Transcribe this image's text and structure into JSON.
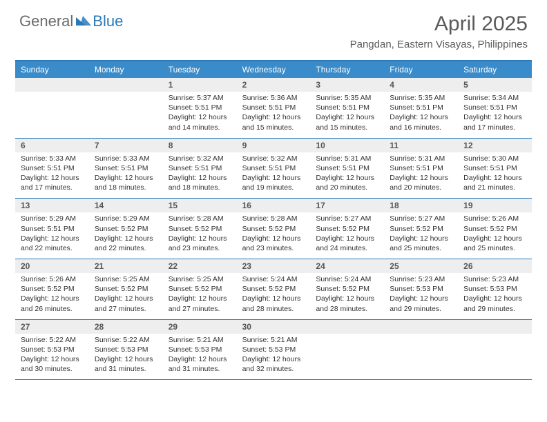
{
  "logo": {
    "general": "General",
    "blue": "Blue"
  },
  "title": "April 2025",
  "location": "Pangdan, Eastern Visayas, Philippines",
  "colors": {
    "header_bar": "#3a8bc9",
    "border": "#2a7ab8",
    "daynum_bg": "#eeeeee",
    "text": "#333333",
    "title_text": "#5a5a5a"
  },
  "weekday_headers": [
    "Sunday",
    "Monday",
    "Tuesday",
    "Wednesday",
    "Thursday",
    "Friday",
    "Saturday"
  ],
  "weeks": [
    [
      {
        "n": "",
        "sr": "",
        "ss": "",
        "dl1": "",
        "dl2": ""
      },
      {
        "n": "",
        "sr": "",
        "ss": "",
        "dl1": "",
        "dl2": ""
      },
      {
        "n": "1",
        "sr": "Sunrise: 5:37 AM",
        "ss": "Sunset: 5:51 PM",
        "dl1": "Daylight: 12 hours",
        "dl2": "and 14 minutes."
      },
      {
        "n": "2",
        "sr": "Sunrise: 5:36 AM",
        "ss": "Sunset: 5:51 PM",
        "dl1": "Daylight: 12 hours",
        "dl2": "and 15 minutes."
      },
      {
        "n": "3",
        "sr": "Sunrise: 5:35 AM",
        "ss": "Sunset: 5:51 PM",
        "dl1": "Daylight: 12 hours",
        "dl2": "and 15 minutes."
      },
      {
        "n": "4",
        "sr": "Sunrise: 5:35 AM",
        "ss": "Sunset: 5:51 PM",
        "dl1": "Daylight: 12 hours",
        "dl2": "and 16 minutes."
      },
      {
        "n": "5",
        "sr": "Sunrise: 5:34 AM",
        "ss": "Sunset: 5:51 PM",
        "dl1": "Daylight: 12 hours",
        "dl2": "and 17 minutes."
      }
    ],
    [
      {
        "n": "6",
        "sr": "Sunrise: 5:33 AM",
        "ss": "Sunset: 5:51 PM",
        "dl1": "Daylight: 12 hours",
        "dl2": "and 17 minutes."
      },
      {
        "n": "7",
        "sr": "Sunrise: 5:33 AM",
        "ss": "Sunset: 5:51 PM",
        "dl1": "Daylight: 12 hours",
        "dl2": "and 18 minutes."
      },
      {
        "n": "8",
        "sr": "Sunrise: 5:32 AM",
        "ss": "Sunset: 5:51 PM",
        "dl1": "Daylight: 12 hours",
        "dl2": "and 18 minutes."
      },
      {
        "n": "9",
        "sr": "Sunrise: 5:32 AM",
        "ss": "Sunset: 5:51 PM",
        "dl1": "Daylight: 12 hours",
        "dl2": "and 19 minutes."
      },
      {
        "n": "10",
        "sr": "Sunrise: 5:31 AM",
        "ss": "Sunset: 5:51 PM",
        "dl1": "Daylight: 12 hours",
        "dl2": "and 20 minutes."
      },
      {
        "n": "11",
        "sr": "Sunrise: 5:31 AM",
        "ss": "Sunset: 5:51 PM",
        "dl1": "Daylight: 12 hours",
        "dl2": "and 20 minutes."
      },
      {
        "n": "12",
        "sr": "Sunrise: 5:30 AM",
        "ss": "Sunset: 5:51 PM",
        "dl1": "Daylight: 12 hours",
        "dl2": "and 21 minutes."
      }
    ],
    [
      {
        "n": "13",
        "sr": "Sunrise: 5:29 AM",
        "ss": "Sunset: 5:51 PM",
        "dl1": "Daylight: 12 hours",
        "dl2": "and 22 minutes."
      },
      {
        "n": "14",
        "sr": "Sunrise: 5:29 AM",
        "ss": "Sunset: 5:52 PM",
        "dl1": "Daylight: 12 hours",
        "dl2": "and 22 minutes."
      },
      {
        "n": "15",
        "sr": "Sunrise: 5:28 AM",
        "ss": "Sunset: 5:52 PM",
        "dl1": "Daylight: 12 hours",
        "dl2": "and 23 minutes."
      },
      {
        "n": "16",
        "sr": "Sunrise: 5:28 AM",
        "ss": "Sunset: 5:52 PM",
        "dl1": "Daylight: 12 hours",
        "dl2": "and 23 minutes."
      },
      {
        "n": "17",
        "sr": "Sunrise: 5:27 AM",
        "ss": "Sunset: 5:52 PM",
        "dl1": "Daylight: 12 hours",
        "dl2": "and 24 minutes."
      },
      {
        "n": "18",
        "sr": "Sunrise: 5:27 AM",
        "ss": "Sunset: 5:52 PM",
        "dl1": "Daylight: 12 hours",
        "dl2": "and 25 minutes."
      },
      {
        "n": "19",
        "sr": "Sunrise: 5:26 AM",
        "ss": "Sunset: 5:52 PM",
        "dl1": "Daylight: 12 hours",
        "dl2": "and 25 minutes."
      }
    ],
    [
      {
        "n": "20",
        "sr": "Sunrise: 5:26 AM",
        "ss": "Sunset: 5:52 PM",
        "dl1": "Daylight: 12 hours",
        "dl2": "and 26 minutes."
      },
      {
        "n": "21",
        "sr": "Sunrise: 5:25 AM",
        "ss": "Sunset: 5:52 PM",
        "dl1": "Daylight: 12 hours",
        "dl2": "and 27 minutes."
      },
      {
        "n": "22",
        "sr": "Sunrise: 5:25 AM",
        "ss": "Sunset: 5:52 PM",
        "dl1": "Daylight: 12 hours",
        "dl2": "and 27 minutes."
      },
      {
        "n": "23",
        "sr": "Sunrise: 5:24 AM",
        "ss": "Sunset: 5:52 PM",
        "dl1": "Daylight: 12 hours",
        "dl2": "and 28 minutes."
      },
      {
        "n": "24",
        "sr": "Sunrise: 5:24 AM",
        "ss": "Sunset: 5:52 PM",
        "dl1": "Daylight: 12 hours",
        "dl2": "and 28 minutes."
      },
      {
        "n": "25",
        "sr": "Sunrise: 5:23 AM",
        "ss": "Sunset: 5:53 PM",
        "dl1": "Daylight: 12 hours",
        "dl2": "and 29 minutes."
      },
      {
        "n": "26",
        "sr": "Sunrise: 5:23 AM",
        "ss": "Sunset: 5:53 PM",
        "dl1": "Daylight: 12 hours",
        "dl2": "and 29 minutes."
      }
    ],
    [
      {
        "n": "27",
        "sr": "Sunrise: 5:22 AM",
        "ss": "Sunset: 5:53 PM",
        "dl1": "Daylight: 12 hours",
        "dl2": "and 30 minutes."
      },
      {
        "n": "28",
        "sr": "Sunrise: 5:22 AM",
        "ss": "Sunset: 5:53 PM",
        "dl1": "Daylight: 12 hours",
        "dl2": "and 31 minutes."
      },
      {
        "n": "29",
        "sr": "Sunrise: 5:21 AM",
        "ss": "Sunset: 5:53 PM",
        "dl1": "Daylight: 12 hours",
        "dl2": "and 31 minutes."
      },
      {
        "n": "30",
        "sr": "Sunrise: 5:21 AM",
        "ss": "Sunset: 5:53 PM",
        "dl1": "Daylight: 12 hours",
        "dl2": "and 32 minutes."
      },
      {
        "n": "",
        "sr": "",
        "ss": "",
        "dl1": "",
        "dl2": ""
      },
      {
        "n": "",
        "sr": "",
        "ss": "",
        "dl1": "",
        "dl2": ""
      },
      {
        "n": "",
        "sr": "",
        "ss": "",
        "dl1": "",
        "dl2": ""
      }
    ]
  ]
}
